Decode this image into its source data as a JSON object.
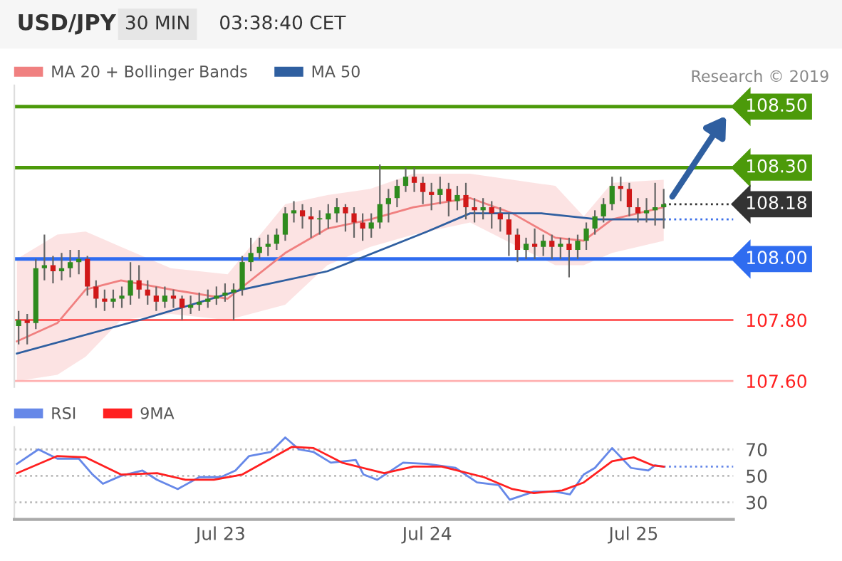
{
  "chart_data": [
    {
      "type": "candlestick",
      "title": "USD/JPY",
      "subtitle": "30 MIN",
      "annotations": [
        "03:38:40 CET",
        "Research © 2019"
      ],
      "x": [
        "2019-07-22T00:30",
        "2019-07-22T01:30",
        "2019-07-22T02:30",
        "2019-07-22T03:30",
        "2019-07-22T04:30",
        "2019-07-22T05:30",
        "2019-07-22T06:30",
        "2019-07-22T07:30",
        "2019-07-22T08:30",
        "2019-07-22T09:30",
        "2019-07-22T10:30",
        "2019-07-22T11:30",
        "2019-07-22T12:30",
        "2019-07-22T13:30",
        "2019-07-22T14:30",
        "2019-07-22T15:30",
        "2019-07-22T16:30",
        "2019-07-22T17:30",
        "2019-07-22T18:30",
        "2019-07-22T19:30",
        "2019-07-22T20:30",
        "2019-07-22T21:30",
        "2019-07-22T22:30",
        "2019-07-22T23:30",
        "2019-07-23T00:30",
        "2019-07-23T01:30",
        "2019-07-23T02:30",
        "2019-07-23T03:30",
        "2019-07-23T04:30",
        "2019-07-23T05:30",
        "2019-07-23T06:30",
        "2019-07-23T07:30",
        "2019-07-23T08:30",
        "2019-07-23T09:30",
        "2019-07-23T10:30",
        "2019-07-23T11:30",
        "2019-07-23T12:30",
        "2019-07-23T13:30",
        "2019-07-23T14:30",
        "2019-07-23T15:30",
        "2019-07-23T16:30",
        "2019-07-23T17:30",
        "2019-07-23T18:30",
        "2019-07-23T19:30",
        "2019-07-23T20:30",
        "2019-07-23T21:30",
        "2019-07-23T22:30",
        "2019-07-23T23:30",
        "2019-07-24T00:30",
        "2019-07-24T01:30",
        "2019-07-24T02:30",
        "2019-07-24T03:30",
        "2019-07-24T04:30",
        "2019-07-24T05:30",
        "2019-07-24T06:30",
        "2019-07-24T07:30",
        "2019-07-24T08:30",
        "2019-07-24T09:30",
        "2019-07-24T10:30",
        "2019-07-24T11:30",
        "2019-07-24T12:30",
        "2019-07-24T13:30",
        "2019-07-24T14:30",
        "2019-07-24T15:30",
        "2019-07-24T16:30",
        "2019-07-24T17:30",
        "2019-07-24T18:30",
        "2019-07-24T19:30",
        "2019-07-24T20:30",
        "2019-07-24T21:30",
        "2019-07-24T22:30",
        "2019-07-24T23:30",
        "2019-07-25T00:30",
        "2019-07-25T01:30",
        "2019-07-25T02:30",
        "2019-07-25T03:30"
      ],
      "ohlc": [
        [
          107.78,
          107.83,
          107.72,
          107.8
        ],
        [
          107.8,
          107.82,
          107.72,
          107.79
        ],
        [
          107.79,
          108.0,
          107.77,
          107.97
        ],
        [
          107.97,
          108.08,
          107.93,
          107.98
        ],
        [
          107.98,
          108.01,
          107.92,
          107.96
        ],
        [
          107.96,
          108.02,
          107.93,
          107.97
        ],
        [
          107.97,
          108.03,
          107.94,
          107.99
        ],
        [
          107.99,
          108.03,
          107.95,
          108.0
        ],
        [
          108.0,
          108.01,
          107.88,
          107.91
        ],
        [
          107.91,
          107.93,
          107.84,
          107.87
        ],
        [
          107.87,
          107.9,
          107.83,
          107.86
        ],
        [
          107.86,
          107.9,
          107.84,
          107.87
        ],
        [
          107.87,
          107.91,
          107.84,
          107.88
        ],
        [
          107.88,
          107.99,
          107.85,
          107.93
        ],
        [
          107.93,
          107.98,
          107.87,
          107.9
        ],
        [
          107.9,
          107.93,
          107.85,
          107.88
        ],
        [
          107.88,
          107.91,
          107.83,
          107.86
        ],
        [
          107.86,
          107.91,
          107.84,
          107.88
        ],
        [
          107.88,
          107.9,
          107.84,
          107.87
        ],
        [
          107.87,
          107.88,
          107.8,
          107.84
        ],
        [
          107.84,
          107.88,
          107.82,
          107.85
        ],
        [
          107.85,
          107.89,
          107.83,
          107.86
        ],
        [
          107.86,
          107.9,
          107.84,
          107.87
        ],
        [
          107.87,
          107.91,
          107.85,
          107.88
        ],
        [
          107.88,
          107.92,
          107.86,
          107.89
        ],
        [
          107.89,
          107.92,
          107.8,
          107.9
        ],
        [
          107.9,
          108.01,
          107.88,
          107.99
        ],
        [
          107.99,
          108.07,
          107.96,
          108.02
        ],
        [
          108.02,
          108.07,
          108.0,
          108.04
        ],
        [
          108.04,
          108.08,
          108.01,
          108.05
        ],
        [
          108.05,
          108.1,
          108.03,
          108.08
        ],
        [
          108.08,
          108.17,
          108.06,
          108.15
        ],
        [
          108.15,
          108.19,
          108.12,
          108.16
        ],
        [
          108.16,
          108.18,
          108.1,
          108.14
        ],
        [
          108.14,
          108.17,
          108.07,
          108.13
        ],
        [
          108.13,
          108.16,
          108.08,
          108.13
        ],
        [
          108.13,
          108.18,
          108.1,
          108.15
        ],
        [
          108.15,
          108.2,
          108.12,
          108.17
        ],
        [
          108.17,
          108.18,
          108.09,
          108.15
        ],
        [
          108.15,
          108.17,
          108.07,
          108.12
        ],
        [
          108.12,
          108.15,
          108.06,
          108.1
        ],
        [
          108.1,
          108.15,
          108.07,
          108.12
        ],
        [
          108.12,
          108.31,
          108.1,
          108.18
        ],
        [
          108.18,
          108.23,
          108.12,
          108.2
        ],
        [
          108.2,
          108.26,
          108.17,
          108.24
        ],
        [
          108.24,
          108.3,
          108.22,
          108.27
        ],
        [
          108.27,
          108.3,
          108.22,
          108.25
        ],
        [
          108.25,
          108.27,
          108.18,
          108.22
        ],
        [
          108.22,
          108.25,
          108.16,
          108.21
        ],
        [
          108.21,
          108.27,
          108.18,
          108.23
        ],
        [
          108.23,
          108.25,
          108.14,
          108.19
        ],
        [
          108.19,
          108.24,
          108.16,
          108.21
        ],
        [
          108.21,
          108.25,
          108.13,
          108.17
        ],
        [
          108.17,
          108.2,
          108.12,
          108.16
        ],
        [
          108.16,
          108.2,
          108.13,
          108.17
        ],
        [
          108.17,
          108.19,
          108.1,
          108.15
        ],
        [
          108.15,
          108.17,
          108.09,
          108.13
        ],
        [
          108.13,
          108.15,
          108.01,
          108.08
        ],
        [
          108.08,
          108.1,
          107.99,
          108.03
        ],
        [
          108.03,
          108.07,
          108.0,
          108.05
        ],
        [
          108.05,
          108.1,
          108.0,
          108.04
        ],
        [
          108.04,
          108.08,
          108.01,
          108.06
        ],
        [
          108.06,
          108.08,
          108.0,
          108.04
        ],
        [
          108.04,
          108.07,
          108.0,
          108.05
        ],
        [
          108.05,
          108.07,
          107.94,
          108.03
        ],
        [
          108.03,
          108.08,
          108.0,
          108.06
        ],
        [
          108.06,
          108.12,
          108.03,
          108.1
        ],
        [
          108.1,
          108.16,
          108.08,
          108.14
        ],
        [
          108.14,
          108.2,
          108.12,
          108.18
        ],
        [
          108.18,
          108.27,
          108.16,
          108.24
        ],
        [
          108.24,
          108.27,
          108.19,
          108.23
        ],
        [
          108.23,
          108.25,
          108.14,
          108.17
        ],
        [
          108.17,
          108.2,
          108.12,
          108.15
        ],
        [
          108.15,
          108.2,
          108.12,
          108.16
        ],
        [
          108.16,
          108.25,
          108.11,
          108.17
        ],
        [
          108.17,
          108.23,
          108.1,
          108.18
        ]
      ],
      "series": [
        {
          "name": "MA 20 + Bollinger Bands",
          "type": "line",
          "color": "#f08080",
          "x": [
            "2019-07-22T00:18",
            "2019-07-22T05:00",
            "2019-07-22T08:18",
            "2019-07-22T12:24",
            "2019-07-22T18:12",
            "2019-07-23T00:48",
            "2019-07-23T07:30",
            "2019-07-23T12:24",
            "2019-07-23T17:24",
            "2019-07-23T22:24",
            "2019-07-24T05:00",
            "2019-07-24T09:54",
            "2019-07-24T14:54",
            "2019-07-24T18:12",
            "2019-07-24T21:30",
            "2019-07-25T03:30"
          ],
          "values": [
            107.73,
            107.79,
            107.9,
            107.93,
            107.9,
            107.87,
            108.02,
            108.1,
            108.13,
            108.17,
            108.2,
            108.15,
            108.07,
            108.06,
            108.13,
            108.17
          ],
          "lower": [
            107.6,
            107.62,
            107.68,
            107.8,
            107.82,
            107.8,
            107.85,
            107.98,
            108.04,
            108.08,
            108.12,
            108.05,
            107.98,
            107.98,
            108.02,
            108.06
          ],
          "upper": [
            108.0,
            108.08,
            108.09,
            108.04,
            107.97,
            107.95,
            108.18,
            108.21,
            108.23,
            108.28,
            108.28,
            108.26,
            108.24,
            108.14,
            108.25,
            108.26
          ]
        },
        {
          "name": "MA 50",
          "type": "line",
          "color": "#2f5fa0",
          "x": [
            "2019-07-22T00:18",
            "2019-07-22T14:36",
            "2019-07-23T02:30",
            "2019-07-23T12:24",
            "2019-07-24T00:00",
            "2019-07-24T05:00",
            "2019-07-24T13:18",
            "2019-07-24T19:54",
            "2019-07-25T03:30"
          ],
          "values": [
            107.69,
            107.8,
            107.9,
            107.96,
            108.09,
            108.15,
            108.15,
            108.13,
            108.13
          ]
        }
      ],
      "xlim": [
        "2019-07-22T00:00",
        "2019-07-25T11:36"
      ],
      "ylim": [
        107.58,
        108.57
      ],
      "yticks": [
        {
          "value": 107.8,
          "label": "107.80"
        },
        {
          "value": 107.6,
          "label": "107.60"
        }
      ],
      "ref_lines": [
        {
          "axis": "y",
          "value": 108.5,
          "label": "108.50",
          "color": "#4c9a0a",
          "line_style": "solid"
        },
        {
          "axis": "y",
          "value": 108.3,
          "label": "108.30",
          "color": "#4c9a0a",
          "line_style": "solid"
        },
        {
          "axis": "y",
          "value": 108.18,
          "label": "108.18",
          "color": "#333333",
          "line_style": "dotted"
        },
        {
          "axis": "y",
          "value": 108.13,
          "color": "#3a6ee8",
          "line_style": "dotted"
        },
        {
          "axis": "y",
          "value": 108.0,
          "label": "108.00",
          "color": "#2f6cf0",
          "line_style": "solid"
        },
        {
          "axis": "y",
          "value": 107.8,
          "color": "#ff6060",
          "line_style": "solid"
        },
        {
          "axis": "y",
          "value": 107.6,
          "color": "#ffb0b0",
          "line_style": "solid"
        }
      ],
      "tick_labels": "y",
      "legend": "top left"
    },
    {
      "type": "line",
      "series": [
        {
          "name": "RSI",
          "color": "#6688e8",
          "x": [
            "2019-07-22T00:18",
            "2019-07-22T02:48",
            "2019-07-22T05:00",
            "2019-07-22T07:30",
            "2019-07-22T09:06",
            "2019-07-22T10:18",
            "2019-07-22T12:24",
            "2019-07-22T14:54",
            "2019-07-22T16:36",
            "2019-07-22T19:00",
            "2019-07-22T21:30",
            "2019-07-23T00:00",
            "2019-07-23T01:42",
            "2019-07-23T03:18",
            "2019-07-23T05:48",
            "2019-07-23T07:30",
            "2019-07-23T09:06",
            "2019-07-23T10:48",
            "2019-07-23T12:48",
            "2019-07-23T15:42",
            "2019-07-23T16:36",
            "2019-07-23T18:12",
            "2019-07-23T21:12",
            "2019-07-24T00:00",
            "2019-07-24T03:18",
            "2019-07-24T05:48",
            "2019-07-24T08:18",
            "2019-07-24T09:36",
            "2019-07-24T12:24",
            "2019-07-24T14:54",
            "2019-07-24T16:36",
            "2019-07-24T18:12",
            "2019-07-24T19:30",
            "2019-07-24T21:30",
            "2019-07-24T23:42",
            "2019-07-25T01:42",
            "2019-07-25T02:30",
            "2019-07-25T03:30"
          ],
          "values": [
            59,
            70,
            63,
            63,
            51,
            44,
            50,
            54,
            47,
            40,
            49,
            49,
            54,
            65,
            68,
            79,
            70,
            68,
            60,
            62,
            51,
            47,
            60,
            59,
            56,
            45,
            43,
            32,
            38,
            38,
            36,
            51,
            56,
            71,
            56,
            54,
            58,
            57
          ]
        },
        {
          "name": "9MA",
          "color": "#ff2020",
          "x": [
            "2019-07-22T00:18",
            "2019-07-22T05:00",
            "2019-07-22T08:18",
            "2019-07-22T12:24",
            "2019-07-22T16:36",
            "2019-07-22T19:54",
            "2019-07-22T23:12",
            "2019-07-23T02:30",
            "2019-07-23T08:18",
            "2019-07-23T10:48",
            "2019-07-23T14:06",
            "2019-07-23T19:00",
            "2019-07-23T22:24",
            "2019-07-24T01:42",
            "2019-07-24T06:36",
            "2019-07-24T09:54",
            "2019-07-24T12:24",
            "2019-07-24T15:42",
            "2019-07-24T18:12",
            "2019-07-24T21:30",
            "2019-07-25T00:00",
            "2019-07-25T02:12",
            "2019-07-25T03:30"
          ],
          "values": [
            52,
            65,
            64,
            51,
            52,
            47,
            47,
            51,
            72,
            71,
            60,
            52,
            57,
            57,
            49,
            40,
            37,
            39,
            45,
            61,
            64,
            58,
            57
          ]
        }
      ],
      "xlim": [
        "2019-07-22T00:00",
        "2019-07-25T11:36"
      ],
      "ylim": [
        17,
        87
      ],
      "yticks": [
        30,
        50,
        70
      ],
      "xticks": [
        {
          "value": "2019-07-23",
          "label": "Jul 23"
        },
        {
          "value": "2019-07-24",
          "label": "Jul 24"
        },
        {
          "value": "2019-07-25",
          "label": "Jul 25"
        }
      ],
      "ref_lines": [
        {
          "axis": "y",
          "value": 57,
          "color": "#6688e8",
          "line_style": "dotted"
        }
      ],
      "grid": "y",
      "legend": "top left"
    }
  ]
}
